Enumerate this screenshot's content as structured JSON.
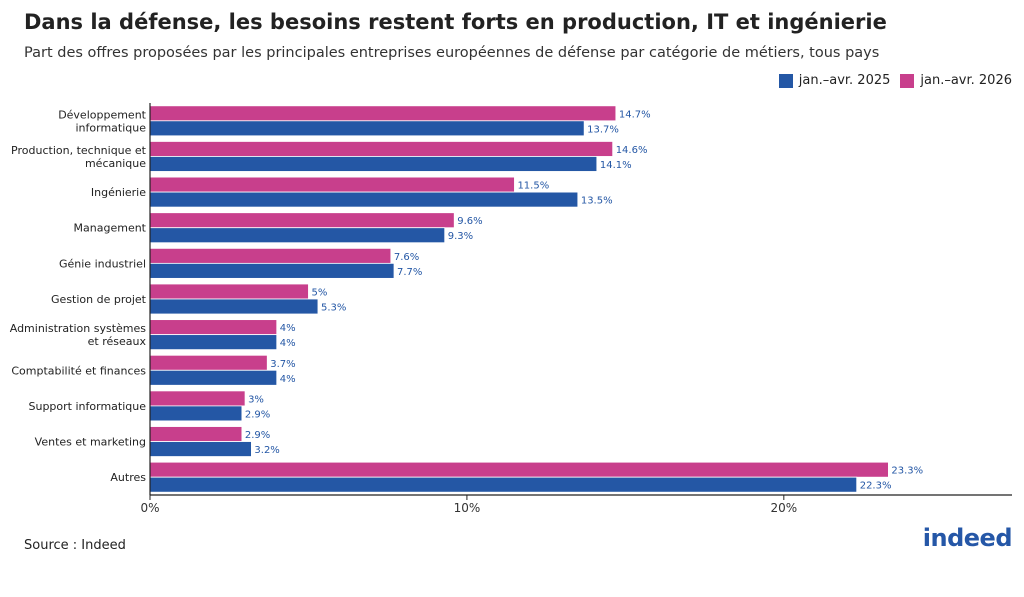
{
  "header": {
    "title": "Dans la défense, les besoins restent forts en production, IT et ingénierie",
    "subtitle": "Part des offres proposées par les principales entreprises européennes de défense par catégorie de métiers, tous pays"
  },
  "footer": {
    "source": "Source : Indeed",
    "logo_text": "indeed"
  },
  "colors": {
    "series_2025": "#2457a5",
    "series_2026": "#c83f8c",
    "label_text": "#2457a5"
  },
  "chart_data": {
    "type": "bar",
    "orientation": "horizontal",
    "categories": [
      [
        "Développement",
        "informatique"
      ],
      [
        "Production, technique et",
        "mécanique"
      ],
      [
        "Ingénierie"
      ],
      [
        "Management"
      ],
      [
        "Génie industriel"
      ],
      [
        "Gestion de projet"
      ],
      [
        "Administration systèmes",
        "et réseaux"
      ],
      [
        "Comptabilité et finances"
      ],
      [
        "Support informatique"
      ],
      [
        "Ventes et marketing"
      ],
      [
        "Autres"
      ]
    ],
    "series": [
      {
        "name": "jan.–avr. 2026",
        "color": "#c83f8c",
        "values": [
          14.7,
          14.6,
          11.5,
          9.6,
          7.6,
          5,
          4,
          3.7,
          3,
          2.9,
          23.3
        ],
        "labels": [
          "14.7%",
          "14.6%",
          "11.5%",
          "9.6%",
          "7.6%",
          "5%",
          "4%",
          "3.7%",
          "3%",
          "2.9%",
          "23.3%"
        ]
      },
      {
        "name": "jan.–avr. 2025",
        "color": "#2457a5",
        "values": [
          13.7,
          14.1,
          13.5,
          9.3,
          7.7,
          5.3,
          4,
          4,
          2.9,
          3.2,
          22.3
        ],
        "labels": [
          "13.7%",
          "14.1%",
          "13.5%",
          "9.3%",
          "7.7%",
          "5.3%",
          "4%",
          "4%",
          "2.9%",
          "3.2%",
          "22.3%"
        ]
      }
    ],
    "legend": [
      {
        "name": "jan.–avr. 2025",
        "color": "#2457a5"
      },
      {
        "name": "jan.–avr. 2026",
        "color": "#c83f8c"
      }
    ],
    "legend_position": "top-right",
    "xlim": [
      0,
      27.2
    ],
    "xticks": [
      0,
      10,
      20
    ],
    "xtick_labels": [
      "0%",
      "10%",
      "20%"
    ],
    "grid": false
  }
}
